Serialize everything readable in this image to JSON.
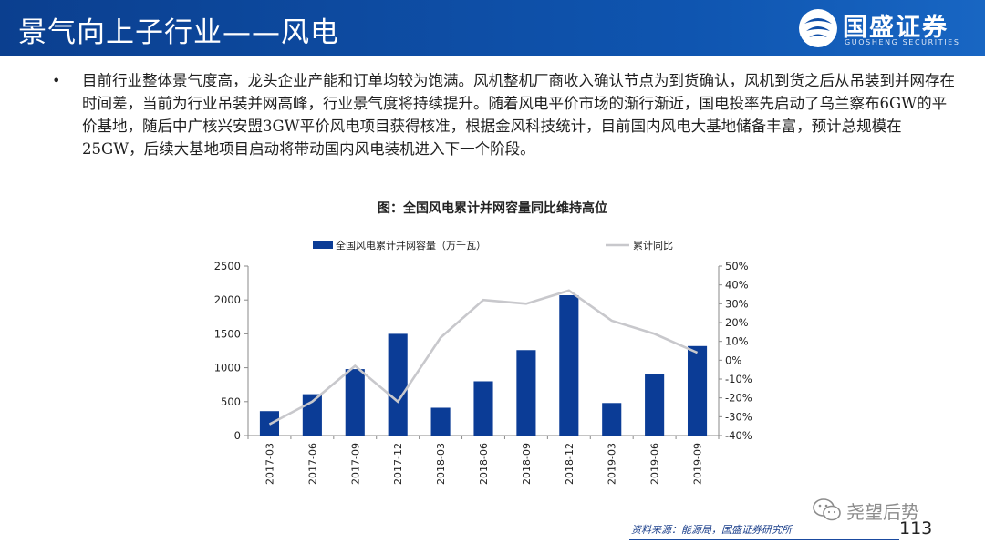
{
  "header": {
    "title": "景气向上子行业——风电",
    "brand_name": "国盛证券",
    "brand_sub": "GUOSHENG SECURITIES"
  },
  "body": {
    "bullet": "•",
    "paragraph": "目前行业整体景气度高，龙头企业产能和订单均较为饱满。风机整机厂商收入确认节点为到货确认，风机到货之后从吊装到并网存在时间差，当前为行业吊装并网高峰，行业景气度将持续提升。随着风电平价市场的渐行渐近，国电投率先启动了乌兰察布6GW的平价基地，随后中广核兴安盟3GW平价风电项目获得核准，根据金风科技统计，目前国内风电大基地储备丰富，预计总规模在25GW，后续大基地项目启动将带动国内风电装机进入下一个阶段。"
  },
  "chart_title": "图：全国风电累计并网容量同比维持高位",
  "chart_data": {
    "type": "bar",
    "categories": [
      "2017-03",
      "2017-06",
      "2017-09",
      "2017-12",
      "2018-03",
      "2018-06",
      "2018-09",
      "2018-12",
      "2019-03",
      "2019-06",
      "2019-09"
    ],
    "series": [
      {
        "name": "全国风电累计并网容量（万千瓦）",
        "type": "bar",
        "axis": "left",
        "color": "#0b3c96",
        "values": [
          360,
          610,
          980,
          1500,
          410,
          800,
          1260,
          2070,
          480,
          910,
          1320
        ]
      },
      {
        "name": "累计同比",
        "type": "line",
        "axis": "right",
        "color": "#c8c8cc",
        "values": [
          -34,
          -22,
          -3,
          -22,
          12,
          32,
          30,
          37,
          21,
          14,
          4
        ]
      }
    ],
    "y_left": {
      "min": 0,
      "max": 2500,
      "ticks": [
        0,
        500,
        1000,
        1500,
        2000,
        2500
      ]
    },
    "y_right": {
      "min": -40,
      "max": 50,
      "ticks": [
        -40,
        -30,
        -20,
        -10,
        0,
        10,
        20,
        30,
        40,
        50
      ],
      "unit": "%"
    },
    "legend_position": "top",
    "grid": false
  },
  "footer": {
    "source": "资料来源：能源局，国盛证券研究所",
    "watermark": "尧望后势",
    "page_number": "113"
  },
  "colors": {
    "header_blue": "#0f4ea8",
    "bar_blue": "#0b3c96",
    "line_gray": "#c8c8cc"
  }
}
